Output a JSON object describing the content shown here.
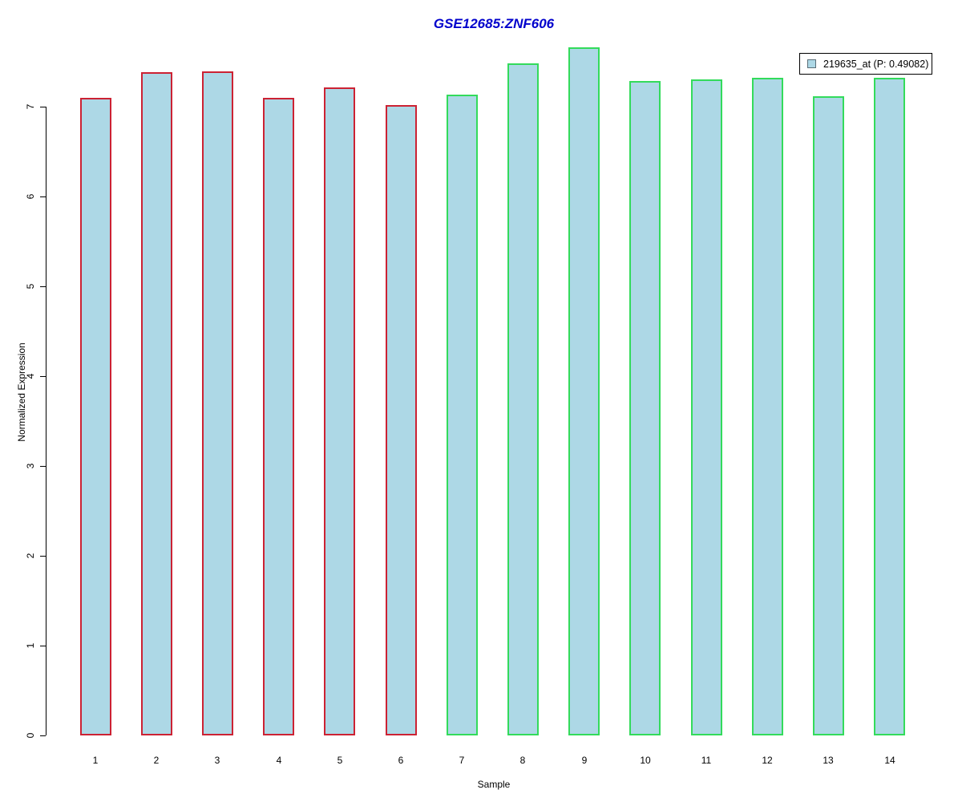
{
  "window": {
    "background_color": "#ffffff"
  },
  "chart_data": {
    "type": "bar",
    "title": "GSE12685:ZNF606",
    "title_color": "#0000cc",
    "xlabel": "Sample",
    "ylabel": "Normalized Expression",
    "categories": [
      "1",
      "2",
      "3",
      "4",
      "5",
      "6",
      "7",
      "8",
      "9",
      "10",
      "11",
      "12",
      "13",
      "14"
    ],
    "values": [
      7.1,
      7.38,
      7.39,
      7.1,
      7.21,
      7.02,
      7.13,
      7.48,
      7.66,
      7.29,
      7.3,
      7.32,
      7.12,
      7.32
    ],
    "bar_fill_color": "#add8e6",
    "bar_border_colors": [
      "#cc2233",
      "#cc2233",
      "#cc2233",
      "#cc2233",
      "#cc2233",
      "#cc2233",
      "#33db5b",
      "#33db5b",
      "#33db5b",
      "#33db5b",
      "#33db5b",
      "#33db5b",
      "#33db5b",
      "#33db5b"
    ],
    "group_info": {
      "red_border_samples": [
        "1",
        "2",
        "3",
        "4",
        "5",
        "6"
      ],
      "green_border_samples": [
        "7",
        "8",
        "9",
        "10",
        "11",
        "12",
        "13",
        "14"
      ]
    },
    "y_ticks": [
      "0",
      "1",
      "2",
      "3",
      "4",
      "5",
      "6",
      "7"
    ],
    "ylim": [
      0,
      7.7
    ],
    "grid": "off",
    "legend": {
      "position": "top-right",
      "entries": [
        {
          "label": "219635_at (P: 0.49082)",
          "swatch_fill": "#add8e6",
          "swatch_border": "#5a6e78"
        }
      ]
    }
  }
}
